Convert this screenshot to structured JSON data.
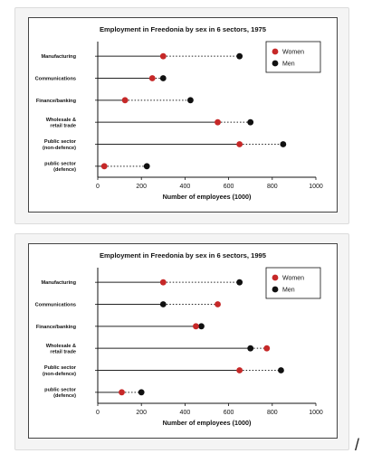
{
  "chart_data": [
    {
      "type": "dot",
      "title": "Employment in Freedonia by sex in 6 sectors, 1975",
      "xlabel": "Number of employees (1000)",
      "xlim": [
        0,
        1000
      ],
      "xticks": [
        "0",
        "200",
        "400",
        "600",
        "800",
        "1000"
      ],
      "legend_position": "top-right",
      "categories": [
        "Manufacturing",
        "Communications",
        "Finance/banking",
        "Wholesale & retail trade",
        "Public sector (non-defence)",
        "public sector (defence)"
      ],
      "category_lines": [
        [
          "Manufacturing"
        ],
        [
          "Communications"
        ],
        [
          "Finance/banking"
        ],
        [
          "Wholesale &",
          "retail trade"
        ],
        [
          "Public sector",
          "(non-defence)"
        ],
        [
          "public sector",
          "(defence)"
        ]
      ],
      "series": [
        {
          "name": "Women",
          "color": "#c62828",
          "values": [
            300,
            250,
            125,
            550,
            650,
            30
          ]
        },
        {
          "name": "Men",
          "color": "#111111",
          "values": [
            650,
            300,
            425,
            700,
            850,
            225
          ]
        }
      ]
    },
    {
      "type": "dot",
      "title": "Employment in Freedonia by sex in 6 sectors, 1995",
      "xlabel": "Number of employees (1000)",
      "xlim": [
        0,
        1000
      ],
      "xticks": [
        "0",
        "200",
        "400",
        "600",
        "800",
        "1000"
      ],
      "legend_position": "top-right",
      "categories": [
        "Manufacturing",
        "Communications",
        "Finance/banking",
        "Wholesale & retail trade",
        "Public sector (non-defence)",
        "public sector (defence)"
      ],
      "category_lines": [
        [
          "Manufacturing"
        ],
        [
          "Communications"
        ],
        [
          "Finance/banking"
        ],
        [
          "Wholesale &",
          "retail trade"
        ],
        [
          "Public sector",
          "(non-defence)"
        ],
        [
          "public sector",
          "(defence)"
        ]
      ],
      "series": [
        {
          "name": "Women",
          "color": "#c62828",
          "values": [
            300,
            550,
            450,
            775,
            650,
            110
          ]
        },
        {
          "name": "Men",
          "color": "#111111",
          "values": [
            650,
            300,
            475,
            700,
            840,
            200
          ]
        }
      ]
    }
  ],
  "trailing_mark": "/"
}
